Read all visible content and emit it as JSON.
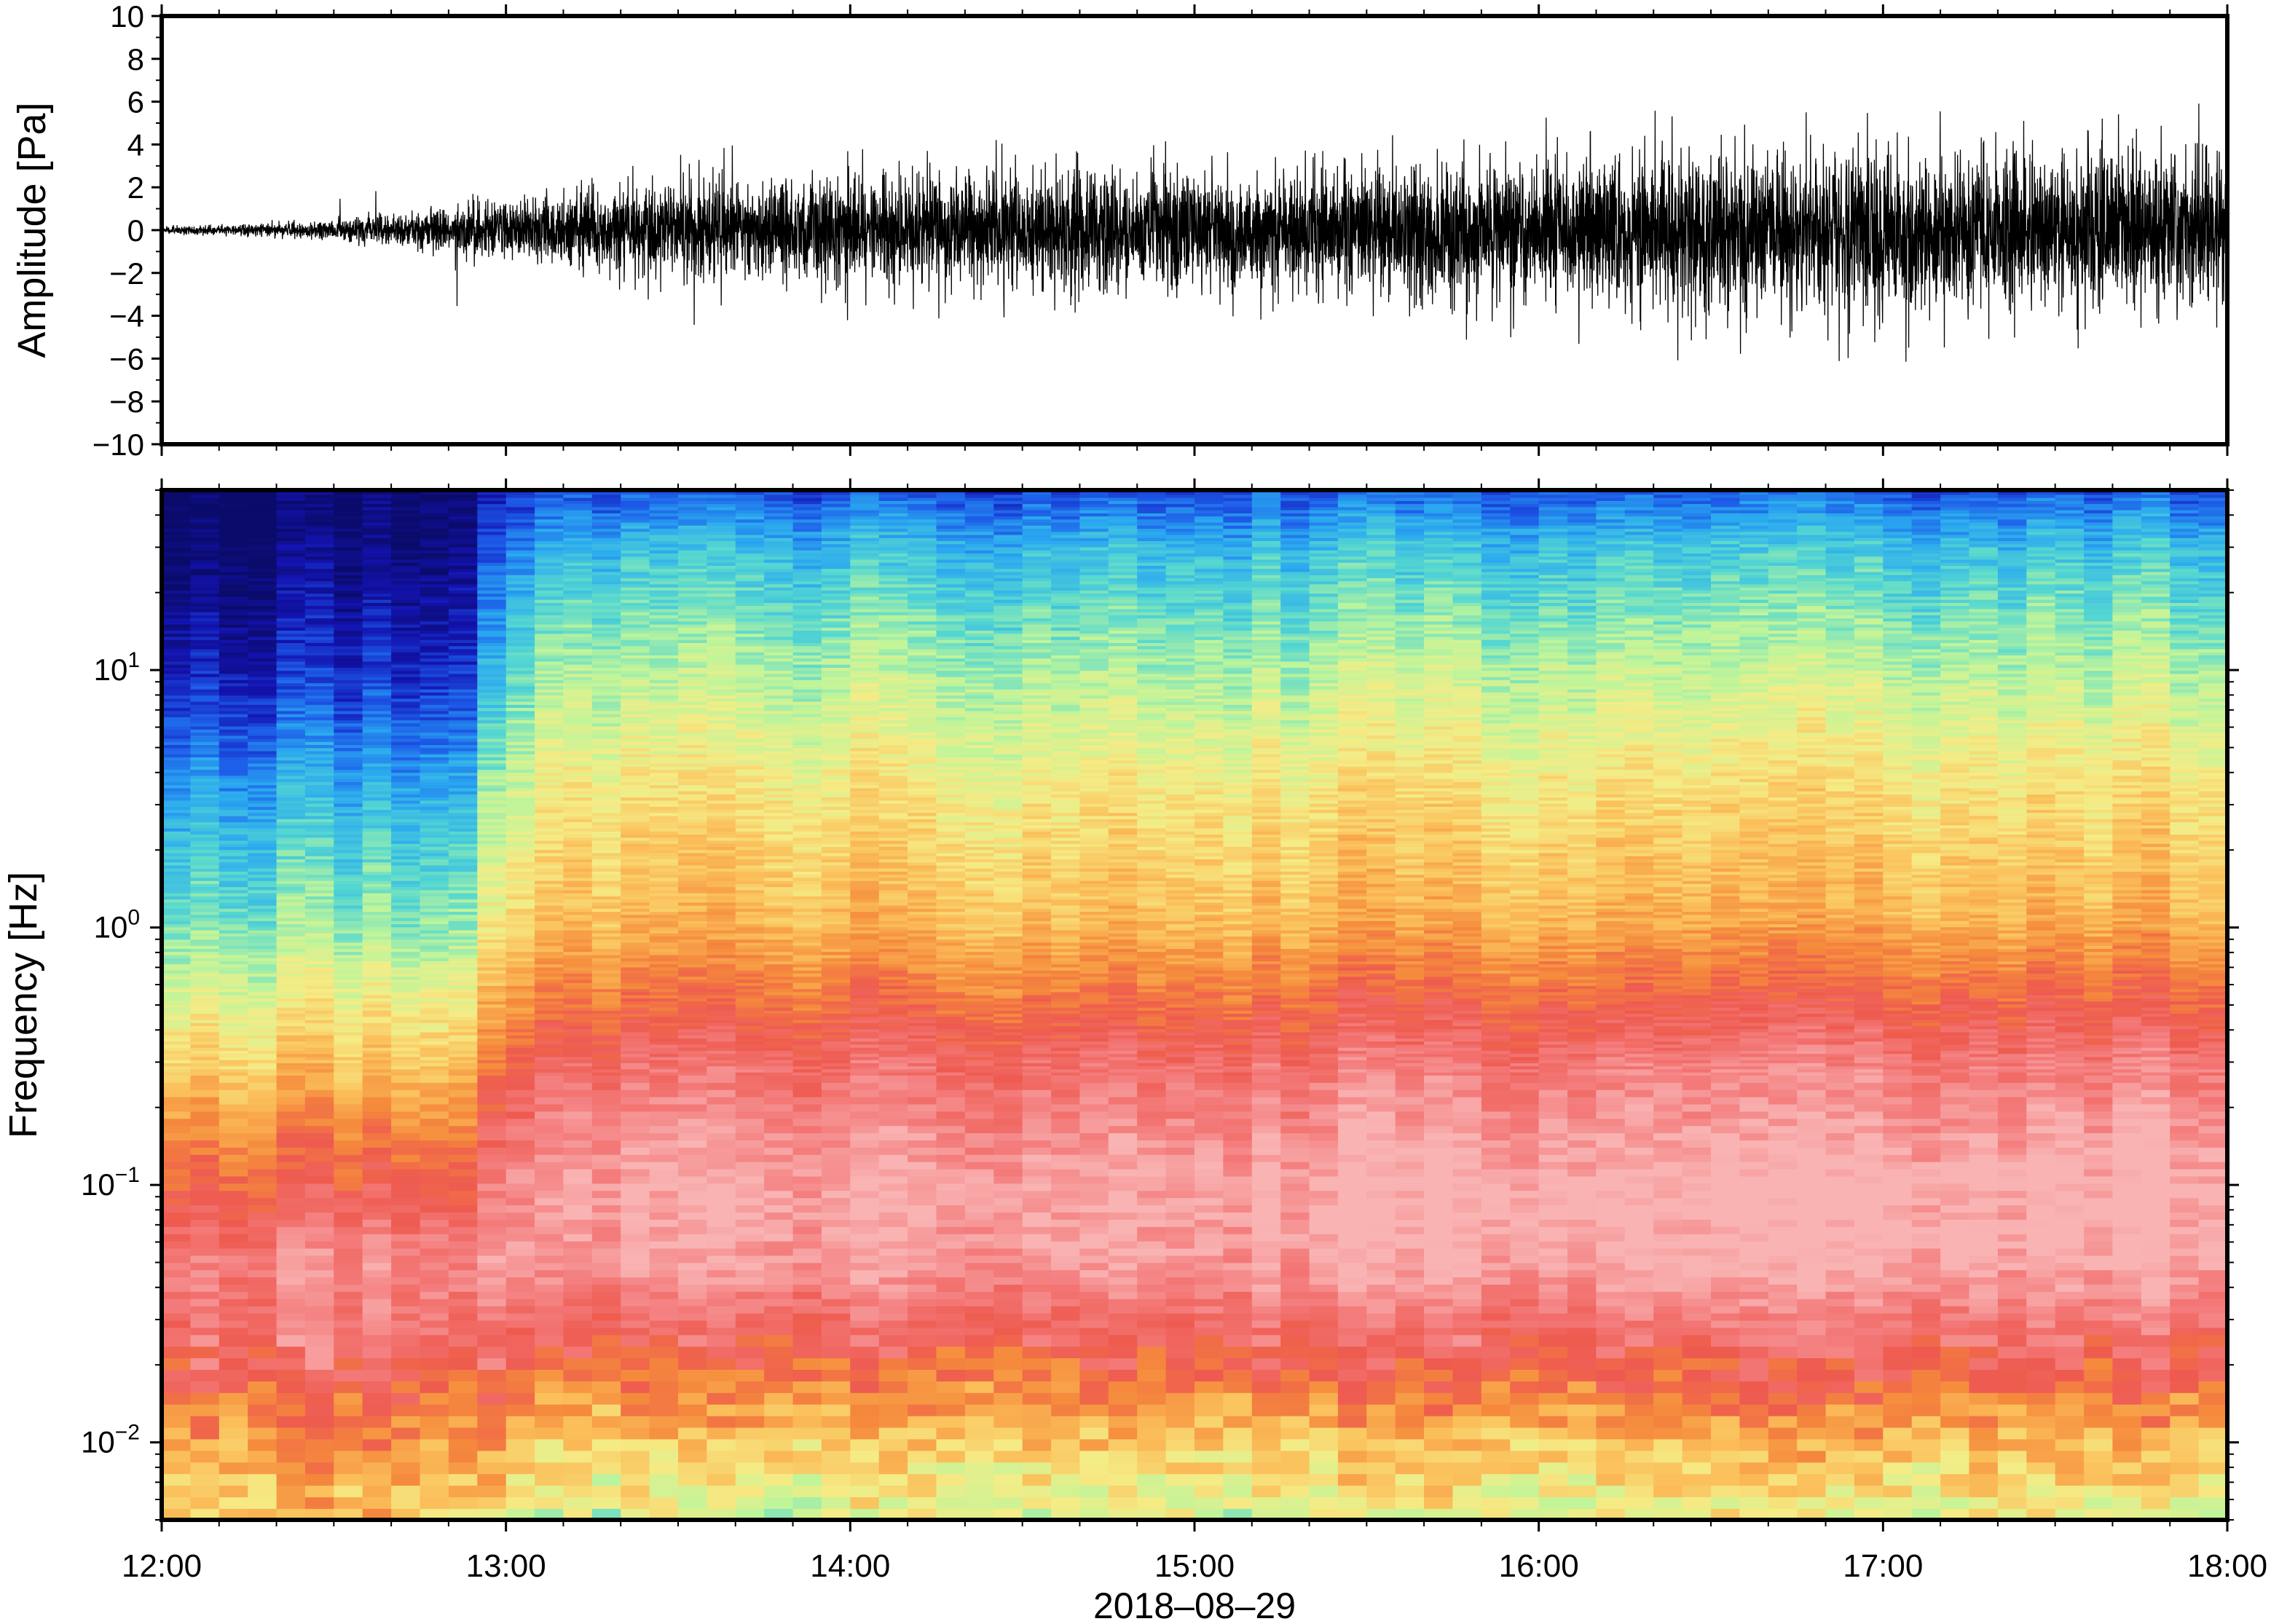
{
  "chart_data": [
    {
      "type": "line",
      "panel": "waveform",
      "ylabel": "Amplitude [Pa]",
      "ylim": [
        -10,
        10
      ],
      "yticks": [
        -10,
        -8,
        -6,
        -4,
        -2,
        0,
        2,
        4,
        6,
        8,
        10
      ],
      "ytick_labels": [
        "−10",
        "−8",
        "−6",
        "−4",
        "−2",
        "0",
        "2",
        "4",
        "6",
        "8",
        "10"
      ],
      "xlim": [
        "12:00",
        "18:00"
      ],
      "envelope": {
        "hours": [
          12.0,
          12.3,
          12.5,
          12.7,
          12.9,
          13.1,
          13.2,
          13.5,
          14.0,
          14.5,
          15.0,
          15.5,
          16.0,
          16.5,
          17.0,
          17.5,
          18.0
        ],
        "typical_amplitude": [
          0.1,
          0.2,
          0.3,
          0.5,
          0.8,
          0.9,
          1.3,
          1.5,
          1.6,
          1.7,
          1.8,
          1.9,
          2.1,
          2.4,
          2.4,
          2.3,
          2.3
        ],
        "peak_amplitude": [
          0.2,
          0.4,
          1.6,
          2.0,
          4.8,
          1.5,
          2.5,
          4.3,
          4.8,
          4.5,
          4.1,
          4.7,
          5.6,
          6.3,
          5.9,
          6.0,
          4.2
        ]
      },
      "line_color": "#000000"
    },
    {
      "type": "heatmap",
      "panel": "spectrogram",
      "ylabel": "Frequency [Hz]",
      "xlabel": "2018–08–29",
      "yscale": "log",
      "ylim": [
        0.005,
        50
      ],
      "yticks": [
        {
          "value": 0.01,
          "base": "10",
          "exp": "−2"
        },
        {
          "value": 0.1,
          "base": "10",
          "exp": "−1"
        },
        {
          "value": 1,
          "base": "10",
          "exp": "0"
        },
        {
          "value": 10,
          "base": "10",
          "exp": "1"
        }
      ],
      "xlim_hours": [
        12,
        18
      ],
      "xticks": [
        "12:00",
        "13:00",
        "14:00",
        "15:00",
        "16:00",
        "17:00",
        "18:00"
      ],
      "colormap": [
        "#0b0b6b",
        "#1313b0",
        "#1d5ae8",
        "#2aa9f0",
        "#56d8d0",
        "#bff59a",
        "#f5ec86",
        "#fbbf5a",
        "#f58a3c",
        "#ee5a4f",
        "#f47d7d",
        "#f9b3b3"
      ],
      "level_model": {
        "description_units": "relative power level, 0 = lowest (dark blue), 1 = highest (light pink)",
        "frequency_hz": [
          0.005,
          0.01,
          0.02,
          0.05,
          0.1,
          0.3,
          1,
          3,
          10,
          30,
          50
        ],
        "level_before_13_05": [
          0.62,
          0.7,
          0.86,
          0.93,
          0.82,
          0.62,
          0.42,
          0.3,
          0.12,
          0.02,
          0.0
        ],
        "level_after_13_05": [
          0.48,
          0.6,
          0.78,
          0.95,
          0.97,
          0.86,
          0.64,
          0.56,
          0.44,
          0.3,
          0.16
        ]
      }
    }
  ]
}
